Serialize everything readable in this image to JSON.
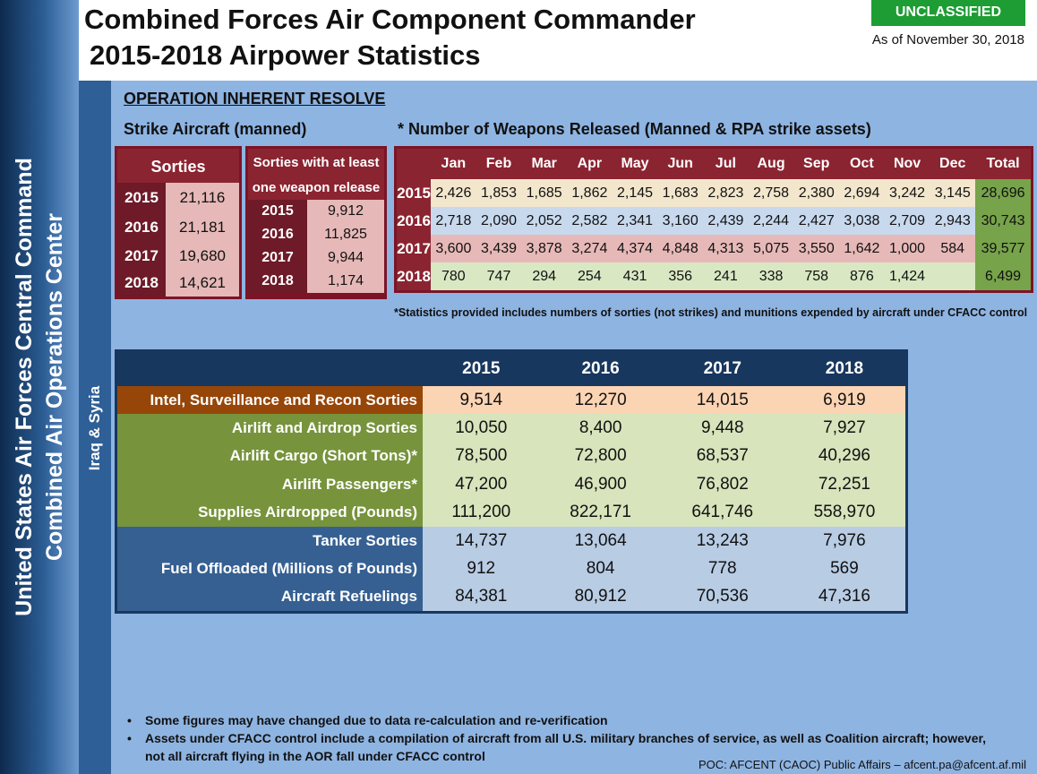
{
  "header": {
    "title_line1": "Combined Forces Air Component Commander",
    "title_line2": "2015-2018 Airpower Statistics",
    "classification": "UNCLASSIFIED",
    "as_of": "As of November 30, 2018"
  },
  "sidebar": {
    "line1": "United States Air Forces Central Command",
    "line2": "Combined Air Operations Center",
    "region": "Iraq & Syria"
  },
  "section": {
    "operation": "OPERATION INHERENT RESOLVE",
    "strike_title": "Strike Aircraft (manned)",
    "weapons_title": "* Number of Weapons Released (Manned & RPA strike assets)"
  },
  "sorties": {
    "header": "Sorties",
    "rows": [
      {
        "year": "2015",
        "value": "21,116"
      },
      {
        "year": "2016",
        "value": "21,181"
      },
      {
        "year": "2017",
        "value": "19,680"
      },
      {
        "year": "2018",
        "value": "14,621"
      }
    ]
  },
  "sorties_weapon": {
    "header_line1": "Sorties with at least",
    "header_line2": "one weapon release",
    "rows": [
      {
        "year": "2015",
        "value": "9,912"
      },
      {
        "year": "2016",
        "value": "11,825"
      },
      {
        "year": "2017",
        "value": "9,944"
      },
      {
        "year": "2018",
        "value": "1,174"
      }
    ]
  },
  "weapons": {
    "columns": [
      "Jan",
      "Feb",
      "Mar",
      "Apr",
      "May",
      "Jun",
      "Jul",
      "Aug",
      "Sep",
      "Oct",
      "Nov",
      "Dec",
      "Total"
    ],
    "rows": [
      {
        "year": "2015",
        "values": [
          "2,426",
          "1,853",
          "1,685",
          "1,862",
          "2,145",
          "1,683",
          "2,823",
          "2,758",
          "2,380",
          "2,694",
          "3,242",
          "3,145"
        ],
        "total": "28,696"
      },
      {
        "year": "2016",
        "values": [
          "2,718",
          "2,090",
          "2,052",
          "2,582",
          "2,341",
          "3,160",
          "2,439",
          "2,244",
          "2,427",
          "3,038",
          "2,709",
          "2,943"
        ],
        "total": "30,743"
      },
      {
        "year": "2017",
        "values": [
          "3,600",
          "3,439",
          "3,878",
          "3,274",
          "4,374",
          "4,848",
          "4,313",
          "5,075",
          "3,550",
          "1,642",
          "1,000",
          "584"
        ],
        "total": "39,577"
      },
      {
        "year": "2018",
        "values": [
          "780",
          "747",
          "294",
          "254",
          "431",
          "356",
          "241",
          "338",
          "758",
          "876",
          "1,424",
          ""
        ],
        "total": "6,499"
      }
    ]
  },
  "footnote": "*Statistics provided includes numbers of sorties (not strikes) and munitions expended by aircraft under CFACC control",
  "stats": {
    "years": [
      "2015",
      "2016",
      "2017",
      "2018"
    ],
    "rows": [
      {
        "group": "isr",
        "label": "Intel, Surveillance and Recon Sorties",
        "values": [
          "9,514",
          "12,270",
          "14,015",
          "6,919"
        ]
      },
      {
        "group": "air",
        "label": "Airlift and Airdrop Sorties",
        "values": [
          "10,050",
          "8,400",
          "9,448",
          "7,927"
        ]
      },
      {
        "group": "air",
        "label": "Airlift Cargo (Short Tons)*",
        "values": [
          "78,500",
          "72,800",
          "68,537",
          "40,296"
        ]
      },
      {
        "group": "air",
        "label": "Airlift Passengers*",
        "values": [
          "47,200",
          "46,900",
          "76,802",
          "72,251"
        ]
      },
      {
        "group": "air",
        "label": "Supplies Airdropped (Pounds)",
        "values": [
          "111,200",
          "822,171",
          "641,746",
          "558,970"
        ]
      },
      {
        "group": "tank",
        "label": "Tanker Sorties",
        "values": [
          "14,737",
          "13,064",
          "13,243",
          "7,976"
        ]
      },
      {
        "group": "tank",
        "label": "Fuel Offloaded (Millions of Pounds)",
        "values": [
          "912",
          "804",
          "778",
          "569"
        ]
      },
      {
        "group": "tank",
        "label": "Aircraft Refuelings",
        "values": [
          "84,381",
          "80,912",
          "70,536",
          "47,316"
        ]
      }
    ]
  },
  "bullets": [
    "Some figures may have changed due to data re-calculation and re-verification",
    "Assets under CFACC control include a compilation of aircraft from all U.S.  military branches of service, as well as Coalition aircraft; however, not all aircraft flying in the AOR fall under CFACC control"
  ],
  "poc": "POC:  AFCENT (CAOC) Public Affairs – afcent.pa@afcent.af.mil",
  "colors": {
    "classification_green": "#1d9d33",
    "maroon": "#8b2431",
    "navy": "#17375e",
    "background_blue": "#8eb4e2"
  }
}
